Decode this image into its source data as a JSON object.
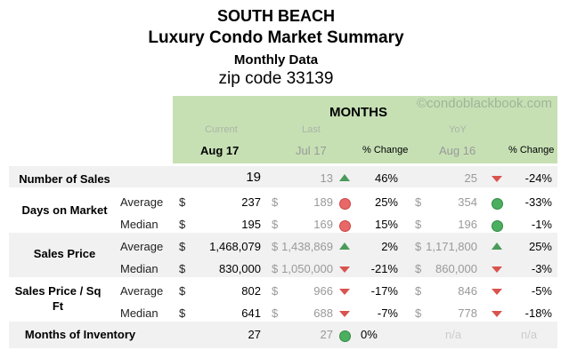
{
  "title": {
    "line1": "SOUTH BEACH",
    "line2": "Luxury Condo Market Summary",
    "line3": "Monthly Data",
    "line4": "zip code 33139"
  },
  "header": {
    "months": "MONTHS",
    "watermark": "©condoblackbook.com",
    "current": "Current",
    "last": "Last",
    "yoy": "YoY",
    "current_month": "Aug 17",
    "last_month": "Jul 17",
    "pct_change": "% Change",
    "yoy_month": "Aug 16",
    "pct_change2": "% Change"
  },
  "colors": {
    "header_bg": "#c6e0b4",
    "band": "#f1f1f1",
    "up": "#4a9a5a",
    "down": "#d9534f"
  },
  "groups": [
    {
      "label": "Number of Sales"
    },
    {
      "label": "Days on Market"
    },
    {
      "label": "Sales Price"
    },
    {
      "label": "Sales Price / Sq Ft"
    },
    {
      "label": "Months of Inventory"
    }
  ],
  "rows": [
    {
      "sub": "",
      "cur_dollar": "",
      "cur": "19",
      "last_dollar": "",
      "last": "13",
      "last_ind": "triangle-up-green",
      "last_pct": "46%",
      "yoy_dollar": "",
      "yoy": "25",
      "yoy_ind": "triangle-down-red",
      "yoy_pct": "-24%"
    },
    {
      "sub": "Average",
      "cur_dollar": "$",
      "cur": "237",
      "last_dollar": "$",
      "last": "189",
      "last_ind": "circle-red",
      "last_pct": "25%",
      "yoy_dollar": "$",
      "yoy": "354",
      "yoy_ind": "circle-green",
      "yoy_pct": "-33%"
    },
    {
      "sub": "Median",
      "cur_dollar": "$",
      "cur": "195",
      "last_dollar": "$",
      "last": "169",
      "last_ind": "circle-red",
      "last_pct": "15%",
      "yoy_dollar": "$",
      "yoy": "196",
      "yoy_ind": "circle-green",
      "yoy_pct": "-1%"
    },
    {
      "sub": "Average",
      "cur_dollar": "$",
      "cur": "1,468,079",
      "last_dollar": "$",
      "last": "1,438,869",
      "last_ind": "triangle-up-green",
      "last_pct": "2%",
      "yoy_dollar": "$",
      "yoy": "1,171,800",
      "yoy_ind": "triangle-up-green",
      "yoy_pct": "25%"
    },
    {
      "sub": "Median",
      "cur_dollar": "$",
      "cur": "830,000",
      "last_dollar": "$",
      "last": "1,050,000",
      "last_ind": "triangle-down-red",
      "last_pct": "-21%",
      "yoy_dollar": "$",
      "yoy": "860,000",
      "yoy_ind": "triangle-down-red",
      "yoy_pct": "-3%"
    },
    {
      "sub": "Average",
      "cur_dollar": "$",
      "cur": "802",
      "last_dollar": "$",
      "last": "966",
      "last_ind": "triangle-down-red",
      "last_pct": "-17%",
      "yoy_dollar": "$",
      "yoy": "846",
      "yoy_ind": "triangle-down-red",
      "yoy_pct": "-5%"
    },
    {
      "sub": "Median",
      "cur_dollar": "$",
      "cur": "641",
      "last_dollar": "$",
      "last": "688",
      "last_ind": "triangle-down-red",
      "last_pct": "-7%",
      "yoy_dollar": "$",
      "yoy": "778",
      "yoy_ind": "triangle-down-red",
      "yoy_pct": "-18%"
    },
    {
      "sub": "",
      "cur_dollar": "",
      "cur": "27",
      "last_dollar": "",
      "last": "27",
      "last_ind": "circle-green",
      "last_pct": "0%",
      "yoy_dollar": "",
      "yoy": "n/a",
      "yoy_ind": "",
      "yoy_pct": "n/a"
    }
  ]
}
